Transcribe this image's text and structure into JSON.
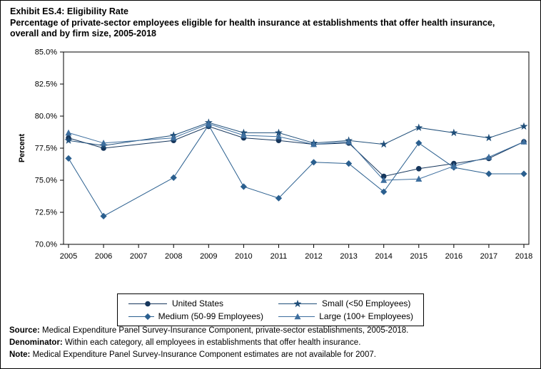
{
  "title": {
    "line1": "Exhibit ES.4: Eligibility Rate",
    "line2": "Percentage of private-sector employees eligible for health insurance at establishments that offer health insurance,",
    "line3": "overall and by firm size, 2005-2018"
  },
  "chart_data": {
    "type": "line",
    "title": "Exhibit ES.4: Eligibility Rate - Percentage of private-sector employees eligible for health insurance at establishments that offer health insurance, overall and by firm size, 2005-2018",
    "xlabel": "",
    "ylabel": "Percent",
    "ylim": [
      70.0,
      85.0
    ],
    "yticks": [
      70.0,
      72.5,
      75.0,
      77.5,
      80.0,
      82.5,
      85.0
    ],
    "ytick_format": "percent_one_decimal",
    "grid": false,
    "legend_position": "bottom",
    "x": [
      2005,
      2006,
      2007,
      2008,
      2009,
      2010,
      2011,
      2012,
      2013,
      2014,
      2015,
      2016,
      2017,
      2018
    ],
    "missing_year_note": "2007 estimates not available",
    "series": [
      {
        "name": "United States",
        "marker": "circle",
        "color": "#16365c",
        "values": [
          78.3,
          77.5,
          null,
          78.1,
          79.2,
          78.3,
          78.1,
          77.8,
          77.9,
          75.3,
          75.9,
          76.3,
          76.7,
          78.0
        ]
      },
      {
        "name": "Small (<50 Employees)",
        "marker": "star",
        "color": "#1f4e79",
        "values": [
          78.1,
          77.7,
          null,
          78.5,
          79.5,
          78.7,
          78.7,
          77.9,
          78.1,
          77.8,
          79.1,
          78.7,
          78.3,
          79.2
        ]
      },
      {
        "name": "Medium (50-99 Employees)",
        "marker": "diamond",
        "color": "#2a5f8f",
        "values": [
          76.7,
          72.2,
          null,
          75.2,
          79.3,
          74.5,
          73.6,
          76.4,
          76.3,
          74.1,
          77.9,
          76.0,
          75.5,
          75.5
        ]
      },
      {
        "name": "Large (100+ Employees)",
        "marker": "triangle",
        "color": "#3d6e9e",
        "values": [
          78.7,
          77.9,
          null,
          78.3,
          79.4,
          78.5,
          78.4,
          77.8,
          78.0,
          75.0,
          75.1,
          76.1,
          76.8,
          78.0
        ]
      }
    ]
  },
  "footnotes": [
    {
      "label": "Source:",
      "text": "Medical Expenditure Panel Survey-Insurance Component, private-sector establishments, 2005-2018."
    },
    {
      "label": "Denominator:",
      "text": "Within each category, all employees in establishments that offer health insurance."
    },
    {
      "label": "Note:",
      "text": "Medical Expenditure Panel Survey-Insurance Component estimates are not available for 2007."
    }
  ]
}
